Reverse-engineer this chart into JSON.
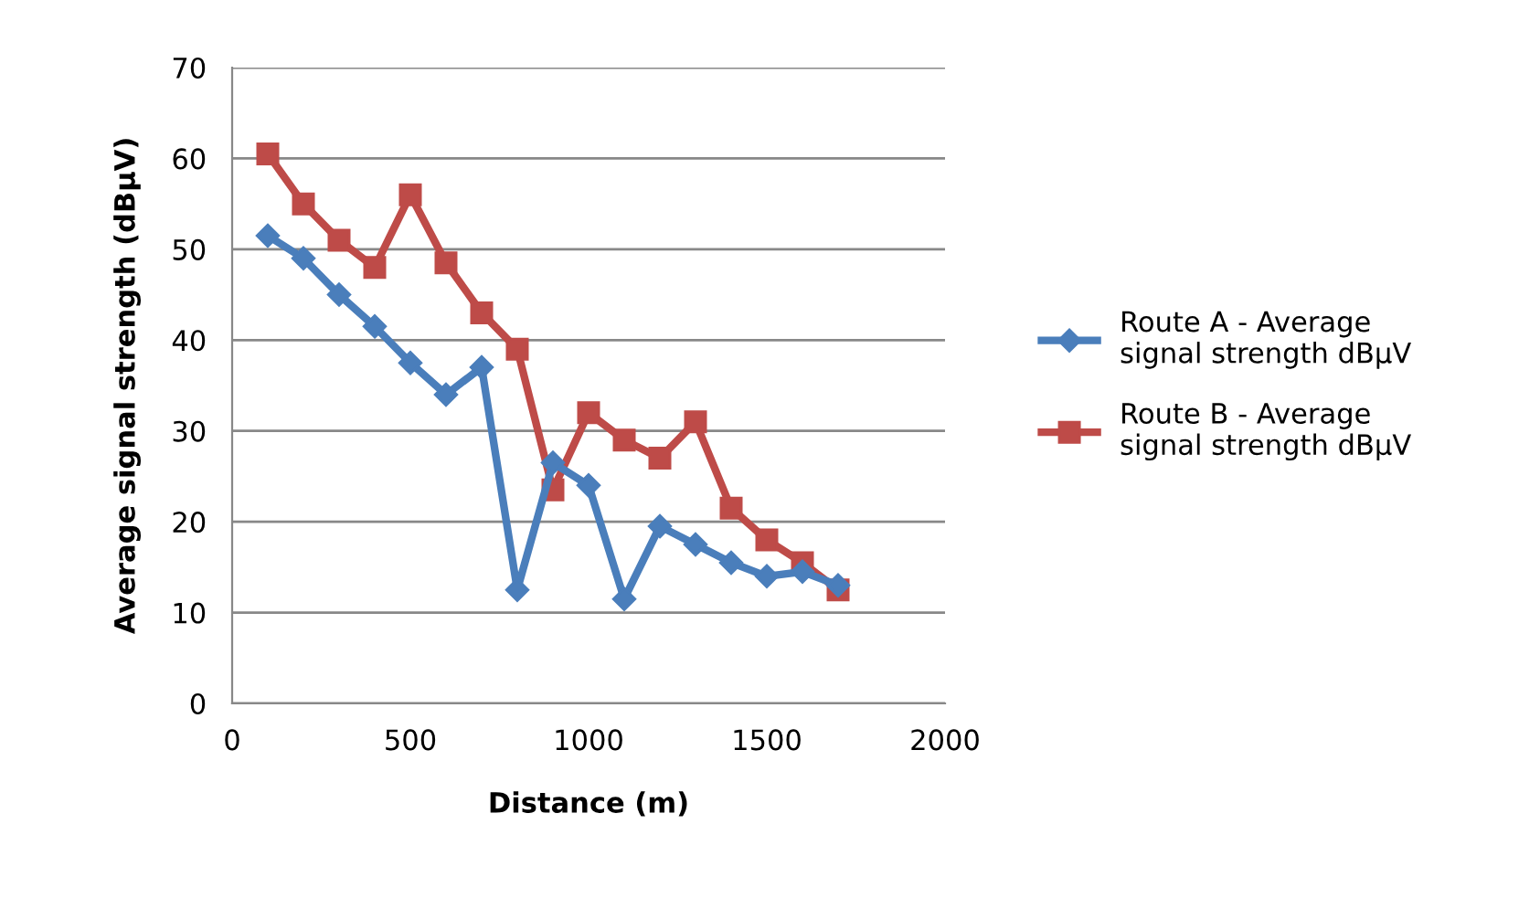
{
  "chart_data": {
    "type": "line",
    "xlabel": "Distance (m)",
    "ylabel": "Average signal strength (dBμV)",
    "x": [
      100,
      200,
      300,
      400,
      500,
      600,
      700,
      800,
      900,
      1000,
      1100,
      1200,
      1300,
      1400,
      1500,
      1600,
      1700
    ],
    "series": [
      {
        "name": "Route A - Average\nsignal strength dBμV",
        "color": "#4a7ebb",
        "marker": "diamond",
        "values": [
          51.5,
          49,
          45,
          41.5,
          37.5,
          34,
          37,
          12.5,
          26.5,
          24,
          11.5,
          19.5,
          17.5,
          15.5,
          14,
          14.5,
          13
        ]
      },
      {
        "name": "Route B - Average\nsignal strength dBμV",
        "color": "#be4b48",
        "marker": "square",
        "values": [
          60.5,
          55,
          51,
          48,
          56,
          48.5,
          43,
          39,
          23.5,
          32,
          29,
          27,
          31,
          21.5,
          18,
          15.5,
          12.5
        ]
      }
    ],
    "xlim": [
      0,
      2000
    ],
    "xticks": [
      0,
      500,
      1000,
      1500,
      2000
    ],
    "ylim": [
      0,
      70
    ],
    "yticks": [
      0,
      10,
      20,
      30,
      40,
      50,
      60,
      70
    ],
    "grid": "y",
    "legend": "right",
    "line_style": "solid"
  }
}
